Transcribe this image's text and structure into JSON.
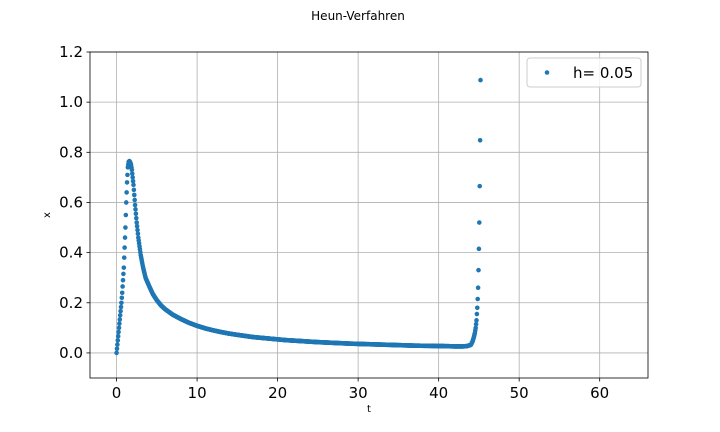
{
  "chart_data": {
    "type": "scatter",
    "title": "Heun-Verfahren",
    "xlabel": "t",
    "ylabel": "x",
    "xlim": [
      -3.3,
      66
    ],
    "ylim": [
      -0.1,
      1.2
    ],
    "xticks": [
      0,
      10,
      20,
      30,
      40,
      50,
      60
    ],
    "yticks": [
      0.0,
      0.2,
      0.4,
      0.6,
      0.8,
      1.0,
      1.2
    ],
    "xtick_labels": [
      "0",
      "10",
      "20",
      "30",
      "40",
      "50",
      "60"
    ],
    "ytick_labels": [
      "0.0",
      "0.2",
      "0.4",
      "0.6",
      "0.8",
      "1.0",
      "1.2"
    ],
    "grid": true,
    "legend_position": "top-right",
    "series": [
      {
        "name": "h= 0.05",
        "color": "#1f77b4",
        "step": 0.05,
        "points": [
          [
            0.0,
            0.0
          ],
          [
            0.15,
            0.05
          ],
          [
            0.3,
            0.1
          ],
          [
            0.45,
            0.15
          ],
          [
            0.6,
            0.2
          ],
          [
            0.7,
            0.24
          ],
          [
            0.8,
            0.29
          ],
          [
            0.9,
            0.34
          ],
          [
            1.0,
            0.42
          ],
          [
            1.1,
            0.5
          ],
          [
            1.2,
            0.6
          ],
          [
            1.3,
            0.68
          ],
          [
            1.4,
            0.74
          ],
          [
            1.5,
            0.762
          ],
          [
            1.6,
            0.765
          ],
          [
            1.7,
            0.76
          ],
          [
            1.8,
            0.75
          ],
          [
            1.9,
            0.73
          ],
          [
            2.0,
            0.7
          ],
          [
            2.1,
            0.67
          ],
          [
            2.2,
            0.63
          ],
          [
            2.3,
            0.59
          ],
          [
            2.5,
            0.52
          ],
          [
            2.7,
            0.46
          ],
          [
            3.0,
            0.39
          ],
          [
            3.3,
            0.34
          ],
          [
            3.6,
            0.3
          ],
          [
            4.0,
            0.27
          ],
          [
            4.5,
            0.235
          ],
          [
            5.0,
            0.21
          ],
          [
            5.5,
            0.19
          ],
          [
            6.0,
            0.175
          ],
          [
            7.0,
            0.152
          ],
          [
            8.0,
            0.135
          ],
          [
            9.0,
            0.12
          ],
          [
            10.0,
            0.108
          ],
          [
            11.0,
            0.098
          ],
          [
            12.0,
            0.09
          ],
          [
            13.0,
            0.083
          ],
          [
            14.0,
            0.077
          ],
          [
            15.0,
            0.072
          ],
          [
            17.0,
            0.063
          ],
          [
            19.0,
            0.057
          ],
          [
            21.0,
            0.051
          ],
          [
            23.0,
            0.047
          ],
          [
            25.0,
            0.043
          ],
          [
            27.0,
            0.04
          ],
          [
            29.0,
            0.037
          ],
          [
            31.0,
            0.035
          ],
          [
            33.0,
            0.033
          ],
          [
            35.0,
            0.031
          ],
          [
            37.0,
            0.029
          ],
          [
            39.0,
            0.028
          ],
          [
            41.0,
            0.027
          ],
          [
            42.0,
            0.026
          ],
          [
            43.0,
            0.026
          ],
          [
            43.5,
            0.027
          ],
          [
            44.0,
            0.032
          ],
          [
            44.2,
            0.045
          ],
          [
            44.35,
            0.06
          ],
          [
            44.5,
            0.08
          ],
          [
            44.6,
            0.1
          ],
          [
            44.7,
            0.13
          ],
          [
            44.75,
            0.155
          ],
          [
            44.8,
            0.18
          ],
          [
            44.85,
            0.215
          ],
          [
            44.9,
            0.26
          ],
          [
            44.95,
            0.33
          ],
          [
            45.0,
            0.415
          ],
          [
            45.05,
            0.52
          ],
          [
            45.1,
            0.665
          ],
          [
            45.15,
            0.848
          ],
          [
            45.2,
            1.088
          ]
        ]
      }
    ]
  }
}
